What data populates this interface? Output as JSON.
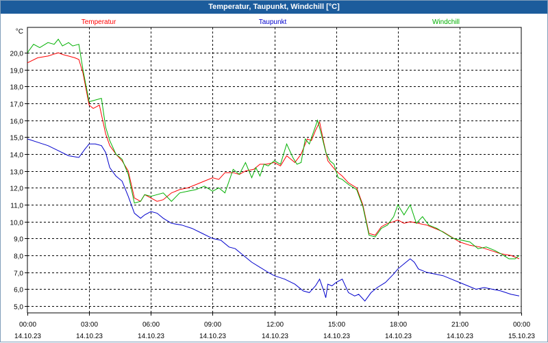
{
  "window": {
    "title": "Temperatur, Taupunkt, Windchill [°C]"
  },
  "chart_data": {
    "type": "line",
    "title": "Temperatur, Taupunkt, Windchill [°C]",
    "ylabel": "°C",
    "ylim": [
      4.6,
      21.5
    ],
    "x_unit": "hours since 14.10.23 00:00",
    "xlim": [
      0,
      24
    ],
    "grid": true,
    "yticks": [
      "5,0",
      "6,0",
      "7,0",
      "8,0",
      "9,0",
      "10,0",
      "11,0",
      "12,0",
      "13,0",
      "14,0",
      "15,0",
      "16,0",
      "17,0",
      "18,0",
      "19,0",
      "20,0"
    ],
    "xticks": [
      {
        "time": "00:00",
        "date": "14.10.23"
      },
      {
        "time": "03:00",
        "date": "14.10.23"
      },
      {
        "time": "06:00",
        "date": "14.10.23"
      },
      {
        "time": "09:00",
        "date": "14.10.23"
      },
      {
        "time": "12:00",
        "date": "14.10.23"
      },
      {
        "time": "15:00",
        "date": "14.10.23"
      },
      {
        "time": "18:00",
        "date": "14.10.23"
      },
      {
        "time": "21:00",
        "date": "14.10.23"
      },
      {
        "time": "00:00",
        "date": "15.10.23"
      }
    ],
    "series": [
      {
        "name": "Temperatur",
        "color": "#ff0000",
        "x": [
          0,
          0.5,
          1,
          1.5,
          1.7,
          2,
          2.3,
          2.5,
          2.7,
          3,
          3.2,
          3.5,
          3.8,
          4,
          4.3,
          4.6,
          4.9,
          5.2,
          5.5,
          5.7,
          6,
          6.3,
          6.6,
          7,
          7.4,
          7.8,
          8.2,
          8.6,
          9,
          9.3,
          9.6,
          10,
          10.3,
          10.6,
          11,
          11.3,
          11.6,
          12,
          12.3,
          12.6,
          13,
          13.3,
          13.6,
          13.8,
          14,
          14.2,
          14.4,
          14.6,
          14.8,
          15,
          15.3,
          15.6,
          16,
          16.3,
          16.6,
          16.9,
          17.2,
          17.5,
          17.8,
          18,
          18.3,
          18.6,
          19,
          19.4,
          19.8,
          20.2,
          20.6,
          21,
          21.5,
          22,
          22.5,
          23,
          23.5,
          23.9
        ],
        "values": [
          19.4,
          19.7,
          19.8,
          20.0,
          19.9,
          19.8,
          19.7,
          19.6,
          18.8,
          16.9,
          16.7,
          16.9,
          15.2,
          14.5,
          14.0,
          13.6,
          13.0,
          11.4,
          11.2,
          11.6,
          11.4,
          11.2,
          11.3,
          11.7,
          11.9,
          12.0,
          12.2,
          12.4,
          12.6,
          12.5,
          12.9,
          12.9,
          12.8,
          13.0,
          13.1,
          13.4,
          13.4,
          13.5,
          13.3,
          13.9,
          13.5,
          14.0,
          14.9,
          14.8,
          15.4,
          15.9,
          14.7,
          13.6,
          13.3,
          13.0,
          12.7,
          12.3,
          12.0,
          11.0,
          9.3,
          9.2,
          9.7,
          9.9,
          10.0,
          10.1,
          9.9,
          10.0,
          9.9,
          9.8,
          9.6,
          9.4,
          9.1,
          8.8,
          8.6,
          8.5,
          8.3,
          8.1,
          8.0,
          7.8
        ]
      },
      {
        "name": "Taupunkt",
        "color": "#0000cc",
        "x": [
          0,
          0.5,
          1,
          1.5,
          2,
          2.5,
          2.8,
          3,
          3.3,
          3.6,
          3.8,
          4,
          4.3,
          4.6,
          4.9,
          5.2,
          5.5,
          5.7,
          6,
          6.3,
          6.6,
          7,
          7.5,
          8,
          8.5,
          9,
          9.4,
          9.8,
          10.1,
          10.5,
          10.9,
          11.3,
          11.7,
          12,
          12.5,
          13,
          13.4,
          13.7,
          14,
          14.2,
          14.4,
          14.5,
          14.6,
          14.8,
          15,
          15.3,
          15.6,
          15.9,
          16.1,
          16.4,
          16.7,
          17,
          17.4,
          17.8,
          18,
          18.3,
          18.6,
          18.8,
          19,
          19.4,
          19.8,
          20.2,
          20.6,
          21,
          21.4,
          21.8,
          22.2,
          22.6,
          23,
          23.5,
          23.9
        ],
        "values": [
          14.9,
          14.7,
          14.5,
          14.2,
          13.9,
          13.8,
          14.3,
          14.6,
          14.6,
          14.5,
          14.1,
          13.2,
          12.7,
          12.4,
          11.5,
          10.5,
          10.2,
          10.4,
          10.6,
          10.5,
          10.2,
          9.9,
          9.8,
          9.6,
          9.3,
          9.0,
          8.9,
          8.5,
          8.4,
          8.0,
          7.6,
          7.3,
          7.0,
          6.8,
          6.6,
          6.3,
          5.9,
          5.8,
          6.2,
          6.6,
          5.9,
          5.5,
          6.3,
          6.2,
          6.4,
          6.6,
          5.8,
          5.6,
          5.7,
          5.3,
          5.8,
          6.1,
          6.4,
          6.9,
          7.2,
          7.5,
          7.8,
          7.6,
          7.2,
          7.0,
          6.9,
          6.8,
          6.6,
          6.4,
          6.2,
          6.0,
          6.1,
          6.0,
          5.9,
          5.7,
          5.6
        ]
      },
      {
        "name": "Windchill",
        "color": "#00b000",
        "x": [
          0,
          0.3,
          0.6,
          1,
          1.3,
          1.5,
          1.7,
          2,
          2.2,
          2.5,
          2.7,
          3,
          3.3,
          3.6,
          3.8,
          4,
          4.3,
          4.6,
          4.9,
          5.2,
          5.5,
          5.7,
          6,
          6.3,
          6.6,
          7,
          7.4,
          7.8,
          8.2,
          8.6,
          9,
          9.3,
          9.6,
          10,
          10.3,
          10.6,
          10.9,
          11.1,
          11.3,
          11.5,
          11.7,
          12,
          12.3,
          12.6,
          12.9,
          13.1,
          13.3,
          13.5,
          13.7,
          13.9,
          14.1,
          14.3,
          14.5,
          14.7,
          14.9,
          15.1,
          15.3,
          15.6,
          16,
          16.3,
          16.6,
          16.9,
          17.2,
          17.5,
          17.8,
          18,
          18.3,
          18.6,
          18.9,
          19.2,
          19.5,
          19.9,
          20.3,
          20.7,
          21.1,
          21.5,
          21.9,
          22.3,
          22.7,
          23,
          23.4,
          23.7,
          23.9
        ],
        "values": [
          20.0,
          20.5,
          20.3,
          20.6,
          20.5,
          20.8,
          20.4,
          20.6,
          20.4,
          20.5,
          19.0,
          17.1,
          17.2,
          17.3,
          15.6,
          14.8,
          14.0,
          13.7,
          12.8,
          11.1,
          11.2,
          11.6,
          11.5,
          11.6,
          11.7,
          11.2,
          11.7,
          11.8,
          11.9,
          12.1,
          11.8,
          12.0,
          11.7,
          13.1,
          12.8,
          13.5,
          12.6,
          13.2,
          12.7,
          13.4,
          13.3,
          13.6,
          13.4,
          14.6,
          13.8,
          13.4,
          13.5,
          14.9,
          14.6,
          15.3,
          16.0,
          15.1,
          14.1,
          13.6,
          13.4,
          12.6,
          12.5,
          12.2,
          11.9,
          10.9,
          9.2,
          9.1,
          9.6,
          9.8,
          10.3,
          11.0,
          10.4,
          11.0,
          9.9,
          10.3,
          9.8,
          9.6,
          9.3,
          9.0,
          8.9,
          8.8,
          8.4,
          8.5,
          8.3,
          8.1,
          7.8,
          7.8,
          8.0
        ]
      }
    ]
  }
}
